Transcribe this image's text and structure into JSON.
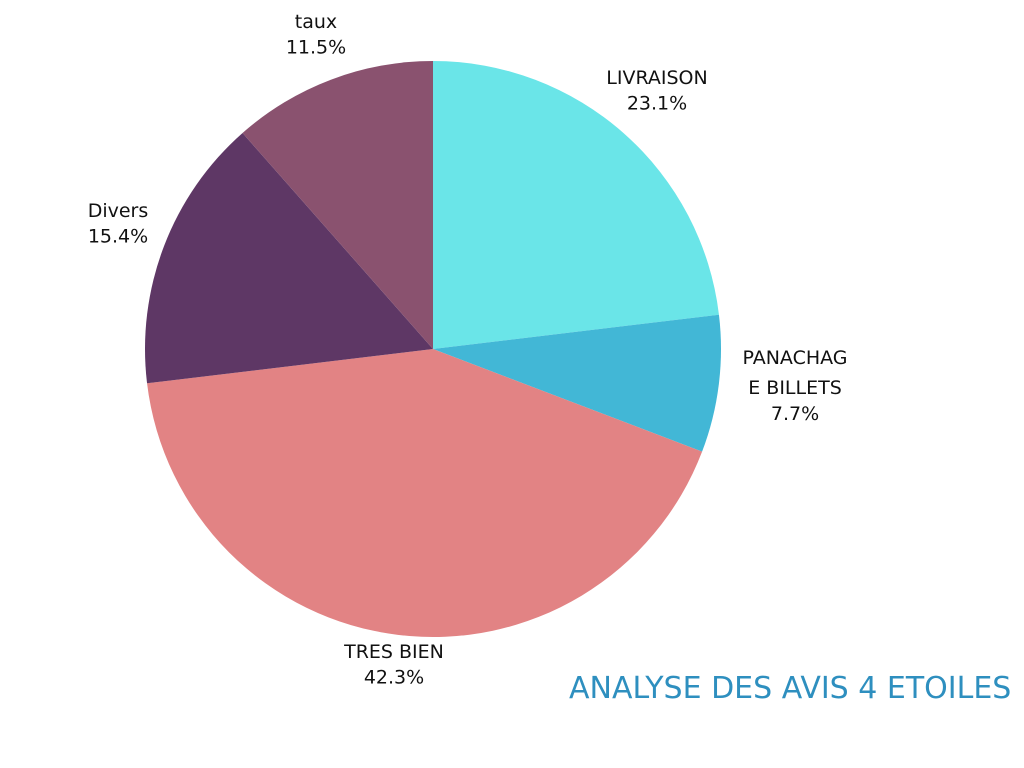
{
  "chart_data": {
    "type": "pie",
    "title": "ANALYSE DES AVIS 4 ETOILES",
    "start_angle": "top",
    "direction": "clockwise",
    "slices": [
      {
        "label": "LIVRAISON",
        "value": 23.1,
        "display": "23.1%",
        "color": "#6ae5e8"
      },
      {
        "label": "PANACHAGE BILLETS",
        "value": 7.7,
        "display": "7.7%",
        "color": "#42b7d6"
      },
      {
        "label": "TRES BIEN",
        "value": 42.3,
        "display": "42.3%",
        "color": "#e28384"
      },
      {
        "label": "Divers",
        "value": 15.4,
        "display": "15.4%",
        "color": "#5e3765"
      },
      {
        "label": "taux",
        "value": 11.5,
        "display": "11.5%",
        "color": "#8a526f"
      }
    ]
  }
}
